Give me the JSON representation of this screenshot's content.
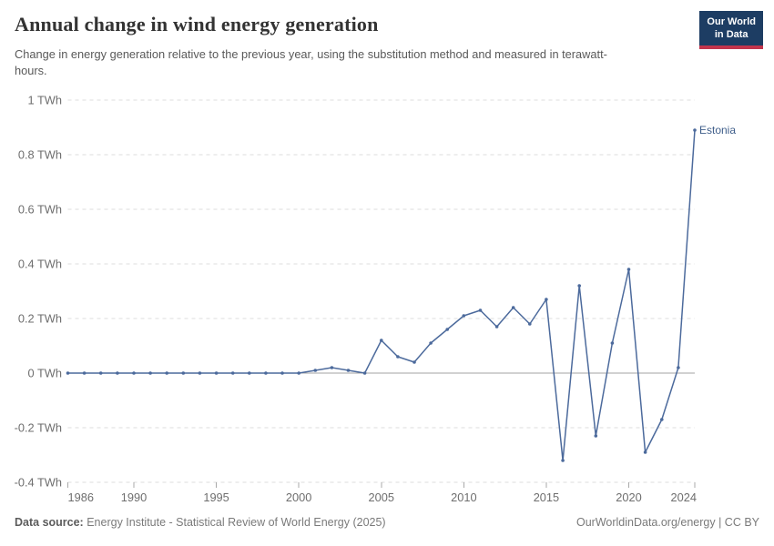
{
  "header": {
    "title": "Annual change in wind energy generation",
    "subtitle": "Change in energy generation relative to the previous year, using the substitution method and measured in terawatt-hours.",
    "logo": {
      "line1": "Our World",
      "line2": "in Data"
    }
  },
  "footer": {
    "source_label": "Data source:",
    "source_text": " Energy Institute - Statistical Review of World Energy (2025)",
    "credit": "OurWorldinData.org/energy | CC BY"
  },
  "colors": {
    "line": "#4c6a9c",
    "series_label": "#3f5e8a",
    "gridline": "#dcdcdc",
    "zero_line": "#a3a3a3",
    "tick_mark": "#a9a9a9",
    "logo_bg": "#1d3d63",
    "logo_red": "#c2344c"
  },
  "chart_data": {
    "type": "line",
    "title": "Annual change in wind energy generation",
    "xlabel": "",
    "ylabel": "TWh",
    "unit": "TWh",
    "xlim": [
      1986,
      2024
    ],
    "ylim": [
      -0.4,
      1
    ],
    "grid": "horizontal-dashed",
    "legend": "end-of-line-label",
    "x_ticks": [
      1986,
      1990,
      1995,
      2000,
      2005,
      2010,
      2015,
      2020,
      2024
    ],
    "y_ticks": [
      1,
      0.8,
      0.6,
      0.4,
      0.2,
      0,
      -0.2,
      -0.4
    ],
    "y_tick_labels": [
      "1 TWh",
      "0.8 TWh",
      "0.6 TWh",
      "0.4 TWh",
      "0.2 TWh",
      "0 TWh",
      "-0.2 TWh",
      "-0.4 TWh"
    ],
    "series": [
      {
        "name": "Estonia",
        "x": [
          1986,
          1987,
          1988,
          1989,
          1990,
          1991,
          1992,
          1993,
          1994,
          1995,
          1996,
          1997,
          1998,
          1999,
          2000,
          2001,
          2002,
          2003,
          2004,
          2005,
          2006,
          2007,
          2008,
          2009,
          2010,
          2011,
          2012,
          2013,
          2014,
          2015,
          2016,
          2017,
          2018,
          2019,
          2020,
          2021,
          2022,
          2023,
          2024
        ],
        "values": [
          0,
          0,
          0,
          0,
          0,
          0,
          0,
          0,
          0,
          0,
          0,
          0,
          0,
          0,
          0,
          0.01,
          0.02,
          0.01,
          0,
          0.12,
          0.06,
          0.04,
          0.11,
          0.16,
          0.21,
          0.23,
          0.17,
          0.24,
          0.18,
          0.27,
          -0.32,
          0.32,
          -0.23,
          0.11,
          0.38,
          -0.29,
          -0.17,
          0.02,
          0.89
        ]
      }
    ]
  }
}
